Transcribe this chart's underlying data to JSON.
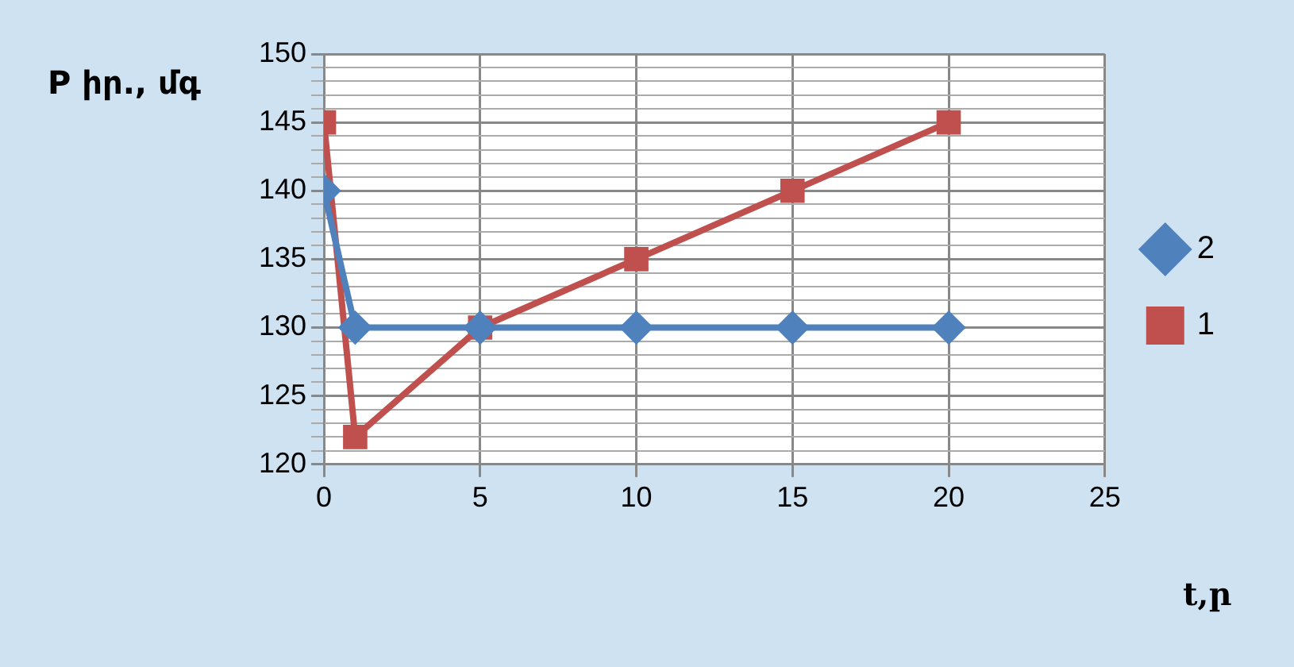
{
  "chart_data": {
    "type": "line",
    "ylabel": "P իր., մգ",
    "xlabel": "t,ր",
    "xlim": [
      0,
      25
    ],
    "xticks": [
      0,
      5,
      10,
      15,
      20,
      25
    ],
    "ylim": [
      120,
      150
    ],
    "yticks": [
      120,
      {
        "value": 121,
        "label": null
      },
      {
        "value": 122,
        "label": null
      },
      {
        "value": 123,
        "label": null
      },
      {
        "value": 124,
        "label": null
      },
      125,
      {
        "value": 126,
        "label": null
      },
      {
        "value": 127,
        "label": null
      },
      {
        "value": 128,
        "label": null
      },
      {
        "value": 129,
        "label": null
      },
      130,
      {
        "value": 131,
        "label": null
      },
      {
        "value": 132,
        "label": null
      },
      {
        "value": 133,
        "label": null
      },
      {
        "value": 134,
        "label": null
      },
      135,
      {
        "value": 136,
        "label": null
      },
      {
        "value": 137,
        "label": null
      },
      {
        "value": 138,
        "label": null
      },
      {
        "value": 139,
        "label": null
      },
      140,
      {
        "value": 141,
        "label": null
      },
      {
        "value": 142,
        "label": null
      },
      {
        "value": 143,
        "label": null
      },
      {
        "value": 144,
        "label": null
      },
      145,
      {
        "value": 146,
        "label": null
      },
      {
        "value": 147,
        "label": null
      },
      {
        "value": 148,
        "label": null
      },
      {
        "value": 149,
        "label": null
      },
      150
    ],
    "grid": true,
    "legend": "right",
    "line_style": "solid",
    "series": [
      {
        "name": "2",
        "color": "#4f81bd",
        "marker": "diamond",
        "x": [
          0,
          1,
          5,
          10,
          15,
          20
        ],
        "values": [
          140,
          130,
          130,
          130,
          130,
          130
        ]
      },
      {
        "name": "1",
        "color": "#c0504d",
        "marker": "square",
        "x": [
          0,
          1,
          5,
          10,
          15,
          20
        ],
        "values": [
          145,
          122,
          130,
          135,
          140,
          145
        ]
      }
    ]
  }
}
